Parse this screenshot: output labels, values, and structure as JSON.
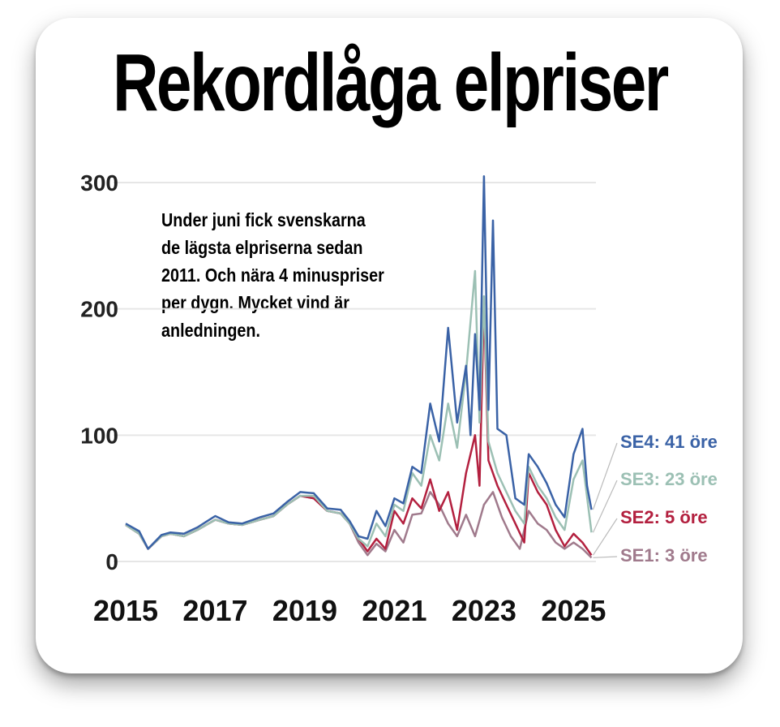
{
  "chart_data": {
    "type": "line",
    "title": "Rekordlåga elpriser",
    "annotation": "Under juni fick svenskarna de lägsta elpriserna sedan 2011. Och nära 4 minuspriser per dygn. Mycket vind är anledningen.",
    "ylim": [
      0,
      300
    ],
    "yticks": [
      0,
      100,
      200,
      300
    ],
    "xticks": [
      2015,
      2017,
      2019,
      2021,
      2023,
      2025
    ],
    "xlim": [
      2015,
      2025.5
    ],
    "grid": true,
    "series": [
      {
        "name": "SE1: 3 öre",
        "color": "#a07a8c",
        "points": [
          [
            2015.0,
            29
          ],
          [
            2015.3,
            22
          ],
          [
            2015.5,
            10
          ],
          [
            2015.8,
            20
          ],
          [
            2016.0,
            22
          ],
          [
            2016.3,
            20
          ],
          [
            2016.6,
            25
          ],
          [
            2017.0,
            33
          ],
          [
            2017.3,
            30
          ],
          [
            2017.6,
            29
          ],
          [
            2018.0,
            33
          ],
          [
            2018.3,
            36
          ],
          [
            2018.6,
            45
          ],
          [
            2018.9,
            52
          ],
          [
            2019.2,
            50
          ],
          [
            2019.5,
            40
          ],
          [
            2019.8,
            38
          ],
          [
            2020.0,
            30
          ],
          [
            2020.2,
            15
          ],
          [
            2020.4,
            5
          ],
          [
            2020.6,
            14
          ],
          [
            2020.8,
            8
          ],
          [
            2021.0,
            25
          ],
          [
            2021.2,
            15
          ],
          [
            2021.4,
            37
          ],
          [
            2021.6,
            38
          ],
          [
            2021.8,
            55
          ],
          [
            2022.0,
            45
          ],
          [
            2022.2,
            30
          ],
          [
            2022.4,
            20
          ],
          [
            2022.6,
            37
          ],
          [
            2022.8,
            20
          ],
          [
            2023.0,
            45
          ],
          [
            2023.2,
            55
          ],
          [
            2023.4,
            35
          ],
          [
            2023.6,
            20
          ],
          [
            2023.8,
            10
          ],
          [
            2024.0,
            40
          ],
          [
            2024.2,
            30
          ],
          [
            2024.4,
            25
          ],
          [
            2024.6,
            15
          ],
          [
            2024.8,
            10
          ],
          [
            2025.0,
            15
          ],
          [
            2025.2,
            10
          ],
          [
            2025.4,
            3
          ]
        ]
      },
      {
        "name": "SE2: 5 öre",
        "color": "#b3203f",
        "points": [
          [
            2015.0,
            29
          ],
          [
            2015.3,
            22
          ],
          [
            2015.5,
            10
          ],
          [
            2015.8,
            20
          ],
          [
            2016.0,
            22
          ],
          [
            2016.3,
            20
          ],
          [
            2016.6,
            25
          ],
          [
            2017.0,
            33
          ],
          [
            2017.3,
            30
          ],
          [
            2017.6,
            29
          ],
          [
            2018.0,
            33
          ],
          [
            2018.3,
            36
          ],
          [
            2018.6,
            45
          ],
          [
            2018.9,
            52
          ],
          [
            2019.2,
            50
          ],
          [
            2019.5,
            40
          ],
          [
            2019.8,
            38
          ],
          [
            2020.0,
            30
          ],
          [
            2020.2,
            18
          ],
          [
            2020.4,
            8
          ],
          [
            2020.6,
            18
          ],
          [
            2020.8,
            10
          ],
          [
            2021.0,
            40
          ],
          [
            2021.2,
            30
          ],
          [
            2021.4,
            50
          ],
          [
            2021.6,
            42
          ],
          [
            2021.8,
            65
          ],
          [
            2022.0,
            40
          ],
          [
            2022.2,
            55
          ],
          [
            2022.4,
            25
          ],
          [
            2022.6,
            70
          ],
          [
            2022.8,
            100
          ],
          [
            2022.9,
            60
          ],
          [
            2023.0,
            205
          ],
          [
            2023.1,
            80
          ],
          [
            2023.3,
            60
          ],
          [
            2023.5,
            45
          ],
          [
            2023.7,
            30
          ],
          [
            2023.9,
            15
          ],
          [
            2024.0,
            70
          ],
          [
            2024.2,
            55
          ],
          [
            2024.4,
            45
          ],
          [
            2024.6,
            25
          ],
          [
            2024.8,
            12
          ],
          [
            2025.0,
            22
          ],
          [
            2025.2,
            15
          ],
          [
            2025.4,
            5
          ]
        ]
      },
      {
        "name": "SE3: 23 öre",
        "color": "#9cc0b4",
        "points": [
          [
            2015.0,
            29
          ],
          [
            2015.3,
            22
          ],
          [
            2015.5,
            10
          ],
          [
            2015.8,
            20
          ],
          [
            2016.0,
            22
          ],
          [
            2016.3,
            20
          ],
          [
            2016.6,
            25
          ],
          [
            2017.0,
            33
          ],
          [
            2017.3,
            30
          ],
          [
            2017.6,
            29
          ],
          [
            2018.0,
            33
          ],
          [
            2018.3,
            36
          ],
          [
            2018.6,
            45
          ],
          [
            2018.9,
            52
          ],
          [
            2019.2,
            52
          ],
          [
            2019.5,
            40
          ],
          [
            2019.8,
            38
          ],
          [
            2020.0,
            30
          ],
          [
            2020.2,
            18
          ],
          [
            2020.4,
            12
          ],
          [
            2020.6,
            30
          ],
          [
            2020.8,
            20
          ],
          [
            2021.0,
            45
          ],
          [
            2021.2,
            40
          ],
          [
            2021.4,
            70
          ],
          [
            2021.6,
            60
          ],
          [
            2021.8,
            100
          ],
          [
            2022.0,
            80
          ],
          [
            2022.2,
            125
          ],
          [
            2022.4,
            90
          ],
          [
            2022.6,
            150
          ],
          [
            2022.8,
            230
          ],
          [
            2022.9,
            110
          ],
          [
            2023.0,
            210
          ],
          [
            2023.1,
            95
          ],
          [
            2023.3,
            70
          ],
          [
            2023.5,
            55
          ],
          [
            2023.7,
            40
          ],
          [
            2023.9,
            30
          ],
          [
            2024.0,
            75
          ],
          [
            2024.2,
            60
          ],
          [
            2024.4,
            50
          ],
          [
            2024.6,
            35
          ],
          [
            2024.8,
            25
          ],
          [
            2025.0,
            65
          ],
          [
            2025.2,
            80
          ],
          [
            2025.4,
            23
          ]
        ]
      },
      {
        "name": "SE4: 41 öre",
        "color": "#3a62a6",
        "points": [
          [
            2015.0,
            30
          ],
          [
            2015.3,
            24
          ],
          [
            2015.5,
            10
          ],
          [
            2015.8,
            21
          ],
          [
            2016.0,
            23
          ],
          [
            2016.3,
            22
          ],
          [
            2016.6,
            27
          ],
          [
            2017.0,
            36
          ],
          [
            2017.3,
            31
          ],
          [
            2017.6,
            30
          ],
          [
            2018.0,
            35
          ],
          [
            2018.3,
            38
          ],
          [
            2018.6,
            47
          ],
          [
            2018.9,
            55
          ],
          [
            2019.2,
            54
          ],
          [
            2019.5,
            42
          ],
          [
            2019.8,
            41
          ],
          [
            2020.0,
            32
          ],
          [
            2020.2,
            20
          ],
          [
            2020.4,
            18
          ],
          [
            2020.6,
            40
          ],
          [
            2020.8,
            28
          ],
          [
            2021.0,
            50
          ],
          [
            2021.2,
            46
          ],
          [
            2021.4,
            75
          ],
          [
            2021.6,
            70
          ],
          [
            2021.8,
            125
          ],
          [
            2022.0,
            95
          ],
          [
            2022.2,
            185
          ],
          [
            2022.4,
            110
          ],
          [
            2022.6,
            155
          ],
          [
            2022.7,
            100
          ],
          [
            2022.8,
            180
          ],
          [
            2022.9,
            120
          ],
          [
            2023.0,
            305
          ],
          [
            2023.1,
            120
          ],
          [
            2023.2,
            270
          ],
          [
            2023.3,
            105
          ],
          [
            2023.5,
            100
          ],
          [
            2023.7,
            50
          ],
          [
            2023.9,
            45
          ],
          [
            2024.0,
            85
          ],
          [
            2024.2,
            75
          ],
          [
            2024.4,
            62
          ],
          [
            2024.6,
            45
          ],
          [
            2024.8,
            35
          ],
          [
            2025.0,
            85
          ],
          [
            2025.2,
            105
          ],
          [
            2025.3,
            60
          ],
          [
            2025.4,
            41
          ]
        ]
      }
    ]
  }
}
